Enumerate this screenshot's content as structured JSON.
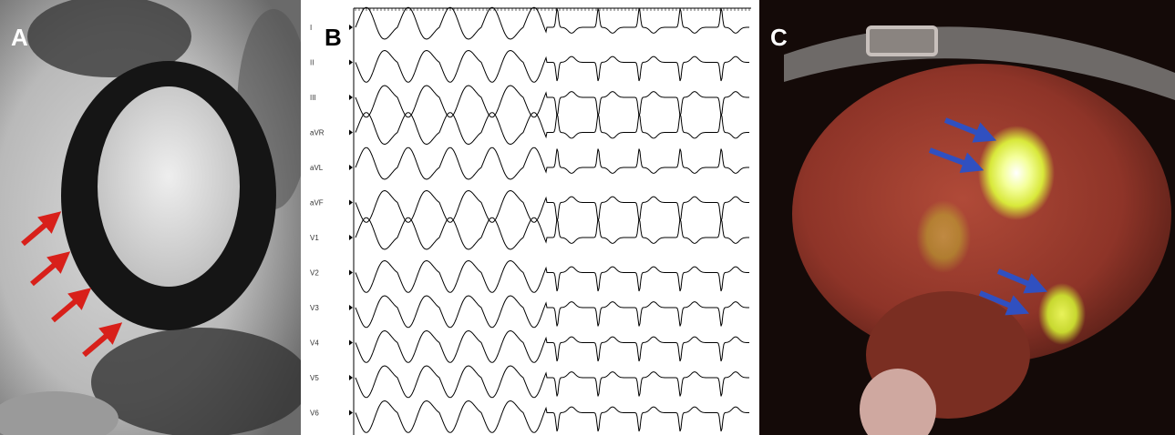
{
  "panels": [
    {
      "label": "A"
    },
    {
      "label": "B",
      "leads": [
        "I",
        "II",
        "III",
        "aVR",
        "aVL",
        "aVF",
        "V1",
        "V2",
        "V3",
        "V4",
        "V5",
        "V6"
      ]
    },
    {
      "label": "C"
    }
  ]
}
